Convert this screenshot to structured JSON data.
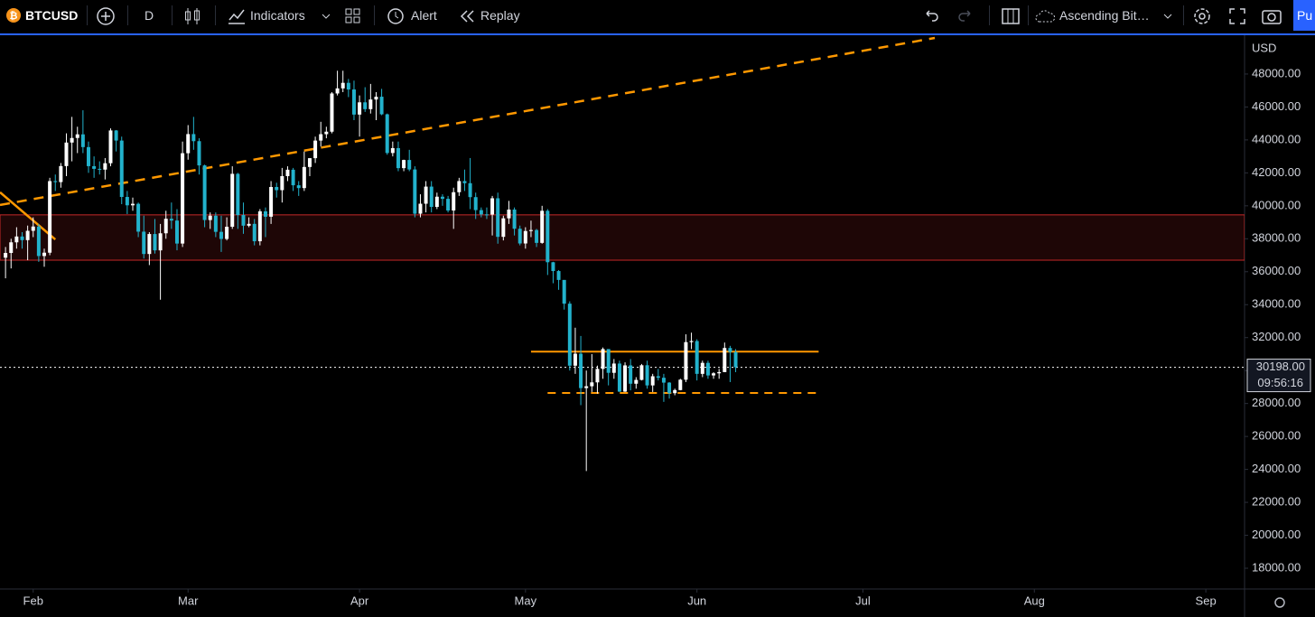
{
  "toolbar": {
    "symbol": "BTCUSD",
    "interval": "D",
    "indicators": "Indicators",
    "alert": "Alert",
    "replay": "Replay",
    "layout": "Ascending Bit…",
    "button": "Pu"
  },
  "chart_data": {
    "type": "candlestick",
    "currency": "USD",
    "up_color": "#ffffff",
    "down_color": "#22b2cc",
    "xlim": [
      -1,
      224
    ],
    "ylim": [
      16740,
      50300
    ],
    "xticks": [
      {
        "value": 5,
        "label": "Feb"
      },
      {
        "value": 33,
        "label": "Mar"
      },
      {
        "value": 64,
        "label": "Apr"
      },
      {
        "value": 94,
        "label": "May"
      },
      {
        "value": 125,
        "label": "Jun"
      },
      {
        "value": 155,
        "label": "Jul"
      },
      {
        "value": 186,
        "label": "Aug"
      },
      {
        "value": 217,
        "label": "Sep"
      }
    ],
    "yticks": [
      {
        "value": 18000,
        "label": "18000.00"
      },
      {
        "value": 20000,
        "label": "20000.00"
      },
      {
        "value": 22000,
        "label": "22000.00"
      },
      {
        "value": 24000,
        "label": "24000.00"
      },
      {
        "value": 26000,
        "label": "26000.00"
      },
      {
        "value": 28000,
        "label": "28000.00"
      },
      {
        "value": 30000,
        "label": "30000.00"
      },
      {
        "value": 32000,
        "label": "32000.00"
      },
      {
        "value": 34000,
        "label": "34000.00"
      },
      {
        "value": 36000,
        "label": "36000.00"
      },
      {
        "value": 38000,
        "label": "38000.00"
      },
      {
        "value": 40000,
        "label": "40000.00"
      },
      {
        "value": 42000,
        "label": "42000.00"
      },
      {
        "value": 44000,
        "label": "44000.00"
      },
      {
        "value": 46000,
        "label": "46000.00"
      },
      {
        "value": 48000,
        "label": "48000.00"
      }
    ],
    "last_price": {
      "value": 30198,
      "label": "30198.00"
    },
    "countdown": "09:56:16",
    "zone": {
      "low": 36700,
      "high": 39450,
      "color": "#c62828"
    },
    "levels": [
      {
        "price": 31150,
        "from": 95,
        "to": 147,
        "dashed": false,
        "color": "#ff9800"
      },
      {
        "price": 28640,
        "from": 98,
        "to": 147,
        "dashed": true,
        "color": "#ff9800"
      }
    ],
    "trendlines": [
      {
        "points": [
          [
            -1,
            40050
          ],
          [
            168,
            50190
          ]
        ],
        "dashed": true,
        "color": "#ff9800"
      },
      {
        "points": [
          [
            -1,
            40820
          ],
          [
            9,
            37960
          ]
        ],
        "dashed": false,
        "color": "#ff9800"
      }
    ],
    "ohlc": [
      [
        36852,
        37500,
        35600,
        37138
      ],
      [
        37138,
        38000,
        36200,
        37784
      ],
      [
        37784,
        38700,
        37400,
        38138
      ],
      [
        38138,
        38400,
        37400,
        37917
      ],
      [
        37917,
        38800,
        36700,
        38483
      ],
      [
        38483,
        39300,
        38100,
        38743
      ],
      [
        38743,
        38900,
        36600,
        36952
      ],
      [
        36952,
        37400,
        36300,
        37154
      ],
      [
        37154,
        41700,
        37000,
        41500
      ],
      [
        41500,
        41900,
        40900,
        41441
      ],
      [
        41441,
        42600,
        41100,
        42412
      ],
      [
        42412,
        44400,
        41800,
        43840
      ],
      [
        43840,
        45400,
        42700,
        44118
      ],
      [
        44118,
        44800,
        43200,
        44338
      ],
      [
        44338,
        45800,
        43200,
        43565
      ],
      [
        43565,
        43900,
        42000,
        42407
      ],
      [
        42407,
        43000,
        41700,
        42244
      ],
      [
        42244,
        42700,
        41900,
        42197
      ],
      [
        42197,
        42900,
        41600,
        42586
      ],
      [
        42586,
        44700,
        42400,
        44575
      ],
      [
        44575,
        44600,
        43300,
        43961
      ],
      [
        43961,
        44200,
        40100,
        40538
      ],
      [
        40538,
        40900,
        39500,
        40030
      ],
      [
        40030,
        40500,
        39700,
        40122
      ],
      [
        40122,
        40200,
        38100,
        38431
      ],
      [
        38431,
        39400,
        36800,
        37075
      ],
      [
        37075,
        38400,
        36400,
        38287
      ],
      [
        38287,
        39200,
        37100,
        37296
      ],
      [
        37296,
        38900,
        34300,
        38332
      ],
      [
        38332,
        39700,
        38000,
        39214
      ],
      [
        39214,
        40200,
        38600,
        39105
      ],
      [
        39105,
        39800,
        37300,
        37709
      ],
      [
        37709,
        43900,
        37500,
        43193
      ],
      [
        43193,
        44900,
        42800,
        44354
      ],
      [
        44354,
        45400,
        43400,
        43925
      ],
      [
        43925,
        44100,
        41900,
        42452
      ],
      [
        42452,
        42500,
        38700,
        39137
      ],
      [
        39137,
        39600,
        38600,
        39400
      ],
      [
        39400,
        39600,
        38100,
        38420
      ],
      [
        38420,
        39400,
        37200,
        37988
      ],
      [
        37988,
        39300,
        37900,
        38730
      ],
      [
        38730,
        42400,
        38600,
        41941
      ],
      [
        41941,
        42000,
        38600,
        39439
      ],
      [
        39439,
        40200,
        38300,
        38794
      ],
      [
        38794,
        39300,
        38700,
        38904
      ],
      [
        38904,
        39200,
        37600,
        37849
      ],
      [
        37849,
        39800,
        37600,
        39666
      ],
      [
        39666,
        39900,
        38100,
        39338
      ],
      [
        39338,
        41500,
        38900,
        41143
      ],
      [
        41143,
        41400,
        40500,
        40951
      ],
      [
        40951,
        42300,
        40200,
        41801
      ],
      [
        41801,
        42400,
        41500,
        42190
      ],
      [
        42190,
        42300,
        40900,
        41247
      ],
      [
        41247,
        41500,
        40600,
        41077
      ],
      [
        41077,
        43300,
        40900,
        42358
      ],
      [
        42358,
        42900,
        41800,
        42892
      ],
      [
        42892,
        44200,
        42600,
        43960
      ],
      [
        43960,
        45100,
        43600,
        44348
      ],
      [
        44348,
        44800,
        44100,
        44500
      ],
      [
        44500,
        46900,
        44400,
        46820
      ],
      [
        46820,
        48200,
        46700,
        47128
      ],
      [
        47128,
        48200,
        46900,
        47465
      ],
      [
        47465,
        47700,
        46600,
        47062
      ],
      [
        47062,
        47600,
        45200,
        45538
      ],
      [
        45538,
        46700,
        44200,
        46281
      ],
      [
        46281,
        47200,
        45700,
        45868
      ],
      [
        45868,
        47400,
        45600,
        46453
      ],
      [
        46453,
        46900,
        45200,
        46622
      ],
      [
        46622,
        47100,
        45500,
        45555
      ],
      [
        45555,
        45600,
        43100,
        43206
      ],
      [
        43206,
        43900,
        43000,
        43503
      ],
      [
        43503,
        43900,
        42100,
        42287
      ],
      [
        42287,
        42800,
        42100,
        42782
      ],
      [
        42782,
        43400,
        42100,
        42207
      ],
      [
        42207,
        42400,
        39300,
        39521
      ],
      [
        39521,
        40700,
        39300,
        40127
      ],
      [
        40127,
        41500,
        39600,
        41166
      ],
      [
        41166,
        41500,
        39600,
        39935
      ],
      [
        39935,
        40800,
        39800,
        40553
      ],
      [
        40553,
        40700,
        40000,
        40424
      ],
      [
        40424,
        40600,
        39600,
        39716
      ],
      [
        39716,
        41100,
        38600,
        40826
      ],
      [
        40826,
        41700,
        40600,
        41502
      ],
      [
        41502,
        42200,
        40900,
        41374
      ],
      [
        41374,
        42900,
        39800,
        40527
      ],
      [
        40527,
        40800,
        39200,
        39740
      ],
      [
        39740,
        39900,
        39300,
        39478
      ],
      [
        39478,
        39900,
        39200,
        39469
      ],
      [
        39469,
        40600,
        38200,
        40458
      ],
      [
        40458,
        40800,
        37700,
        38117
      ],
      [
        38117,
        39400,
        37900,
        39241
      ],
      [
        39241,
        40300,
        38900,
        39773
      ],
      [
        39773,
        39900,
        38200,
        38609
      ],
      [
        38609,
        38800,
        37600,
        37714
      ],
      [
        37714,
        38700,
        37400,
        38469
      ],
      [
        38469,
        39100,
        38100,
        38529
      ],
      [
        38529,
        38600,
        37500,
        37750
      ],
      [
        37750,
        40000,
        37700,
        39698
      ],
      [
        39698,
        39800,
        35800,
        36575
      ],
      [
        36575,
        36600,
        35300,
        36040
      ],
      [
        36040,
        36100,
        34900,
        35501
      ],
      [
        35501,
        35500,
        33700,
        34059
      ],
      [
        34059,
        34200,
        30000,
        30296
      ],
      [
        30296,
        32600,
        29800,
        31022
      ],
      [
        31022,
        32100,
        27900,
        28936
      ],
      [
        28936,
        30000,
        23900,
        29047
      ],
      [
        29047,
        31000,
        28700,
        29283
      ],
      [
        29283,
        30300,
        28600,
        30101
      ],
      [
        30101,
        31400,
        29500,
        31305
      ],
      [
        31305,
        31300,
        29100,
        29862
      ],
      [
        29862,
        30700,
        29500,
        30425
      ],
      [
        30425,
        30600,
        28700,
        28720
      ],
      [
        28720,
        30500,
        28700,
        30314
      ],
      [
        30314,
        30700,
        28800,
        29200
      ],
      [
        29200,
        29600,
        28900,
        29432
      ],
      [
        29432,
        30400,
        29400,
        30323
      ],
      [
        30323,
        30600,
        28900,
        29098
      ],
      [
        29098,
        29800,
        28700,
        29655
      ],
      [
        29655,
        30100,
        29400,
        29562
      ],
      [
        29562,
        29800,
        28100,
        29267
      ],
      [
        29267,
        29300,
        28300,
        28627
      ],
      [
        28627,
        28900,
        28500,
        28814
      ],
      [
        28814,
        29500,
        28800,
        29445
      ],
      [
        29445,
        32200,
        29300,
        31726
      ],
      [
        31726,
        32300,
        31300,
        31792
      ],
      [
        31792,
        31900,
        29400,
        29799
      ],
      [
        29799,
        30600,
        29600,
        30467
      ],
      [
        30467,
        30600,
        29500,
        29704
      ],
      [
        29704,
        29900,
        29500,
        29833
      ],
      [
        29833,
        30100,
        29500,
        29906
      ],
      [
        29906,
        31700,
        29900,
        31370
      ],
      [
        31370,
        31500,
        29300,
        31125
      ],
      [
        31125,
        31300,
        29900,
        30198
      ]
    ]
  }
}
